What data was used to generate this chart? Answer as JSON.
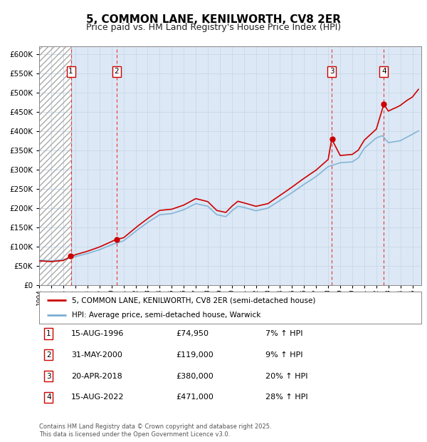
{
  "title": "5, COMMON LANE, KENILWORTH, CV8 2ER",
  "subtitle": "Price paid vs. HM Land Registry's House Price Index (HPI)",
  "ylim": [
    0,
    620000
  ],
  "yticks": [
    0,
    50000,
    100000,
    150000,
    200000,
    250000,
    300000,
    350000,
    400000,
    450000,
    500000,
    550000,
    600000
  ],
  "xlim_start": 1994.0,
  "xlim_end": 2025.75,
  "transactions": [
    {
      "num": 1,
      "date": "15-AUG-1996",
      "price": 74950,
      "pct": "7%",
      "year": 1996.625
    },
    {
      "num": 2,
      "date": "31-MAY-2000",
      "price": 119000,
      "pct": "9%",
      "year": 2000.417
    },
    {
      "num": 3,
      "date": "20-APR-2018",
      "price": 380000,
      "pct": "20%",
      "year": 2018.292
    },
    {
      "num": 4,
      "date": "15-AUG-2022",
      "price": 471000,
      "pct": "28%",
      "year": 2022.625
    }
  ],
  "legend_label_red": "5, COMMON LANE, KENILWORTH, CV8 2ER (semi-detached house)",
  "legend_label_blue": "HPI: Average price, semi-detached house, Warwick",
  "footer": "Contains HM Land Registry data © Crown copyright and database right 2025.\nThis data is licensed under the Open Government Licence v3.0.",
  "hatch_color": "#aaaaaa",
  "bg_color": "#dce8f5",
  "plot_bg": "#ffffff",
  "red_color": "#cc0000",
  "blue_color": "#7bafd4",
  "grid_color": "#c8d8e8",
  "vline_color": "#ee3333",
  "title_fontsize": 11,
  "subtitle_fontsize": 9
}
